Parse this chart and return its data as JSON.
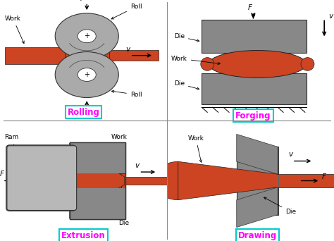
{
  "bg_color": "#ffffff",
  "work_color": "#cc4422",
  "die_color": "#888888",
  "roll_color": "#aaaaaa",
  "ram_color": "#b8b8b8",
  "label_color": "#ff00ff",
  "border_color": "#00cccc",
  "label_fontsize": 8.5,
  "annotation_fontsize": 6.5,
  "panels": [
    "Rolling",
    "Forging",
    "Extrusion",
    "Drawing"
  ],
  "divider_color": "#aaaaaa"
}
